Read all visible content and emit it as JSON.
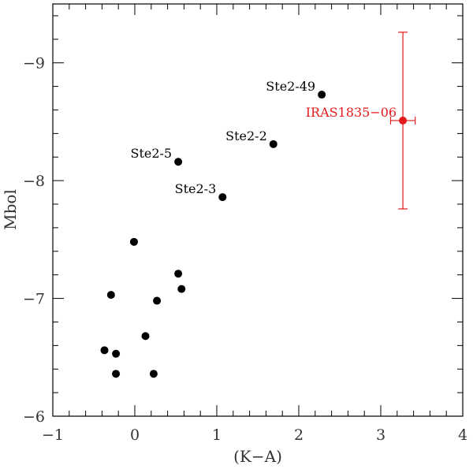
{
  "chart_data": {
    "type": "scatter",
    "xlabel": "(K−A)",
    "ylabel": "Mbol",
    "xlim": [
      -1,
      4
    ],
    "ylim": [
      -6,
      -9.5
    ],
    "y_axis_inverted": true,
    "x_ticks": [
      {
        "value": -1,
        "label": "−1"
      },
      {
        "value": 0,
        "label": "0"
      },
      {
        "value": 1,
        "label": "1"
      },
      {
        "value": 2,
        "label": "2"
      },
      {
        "value": 3,
        "label": "3"
      },
      {
        "value": 4,
        "label": "4"
      }
    ],
    "y_ticks": [
      {
        "value": -6,
        "label": "−6"
      },
      {
        "value": -7,
        "label": "−7"
      },
      {
        "value": -8,
        "label": "−8"
      },
      {
        "value": -9,
        "label": "−9"
      }
    ],
    "x_minor_step": 0.2,
    "y_minor_step": 0.2,
    "grid": false,
    "colors": {
      "points": "#000000",
      "highlight": "#e41a1c",
      "axes": "#000000"
    },
    "series": [
      {
        "points": [
          {
            "x": 2.28,
            "y": -8.73,
            "label": "Ste2-49"
          },
          {
            "x": 1.69,
            "y": -8.31,
            "label": "Ste2-2"
          },
          {
            "x": 0.53,
            "y": -8.16,
            "label": "Ste2-5"
          },
          {
            "x": 1.07,
            "y": -7.86,
            "label": "Ste2-3"
          },
          {
            "x": -0.01,
            "y": -7.48
          },
          {
            "x": 0.53,
            "y": -7.21
          },
          {
            "x": 0.57,
            "y": -7.08
          },
          {
            "x": -0.29,
            "y": -7.03
          },
          {
            "x": 0.27,
            "y": -6.98
          },
          {
            "x": 0.13,
            "y": -6.68
          },
          {
            "x": -0.37,
            "y": -6.56
          },
          {
            "x": -0.23,
            "y": -6.53
          },
          {
            "x": -0.23,
            "y": -6.36
          },
          {
            "x": 0.23,
            "y": -6.36
          }
        ]
      },
      {
        "color": "#e41a1c",
        "points": [
          {
            "x": 3.27,
            "y": -8.51,
            "label": "IRAS1835−06",
            "xerr": 0.15,
            "yerr_low": 0.75,
            "yerr_high": 0.75
          }
        ]
      }
    ]
  }
}
